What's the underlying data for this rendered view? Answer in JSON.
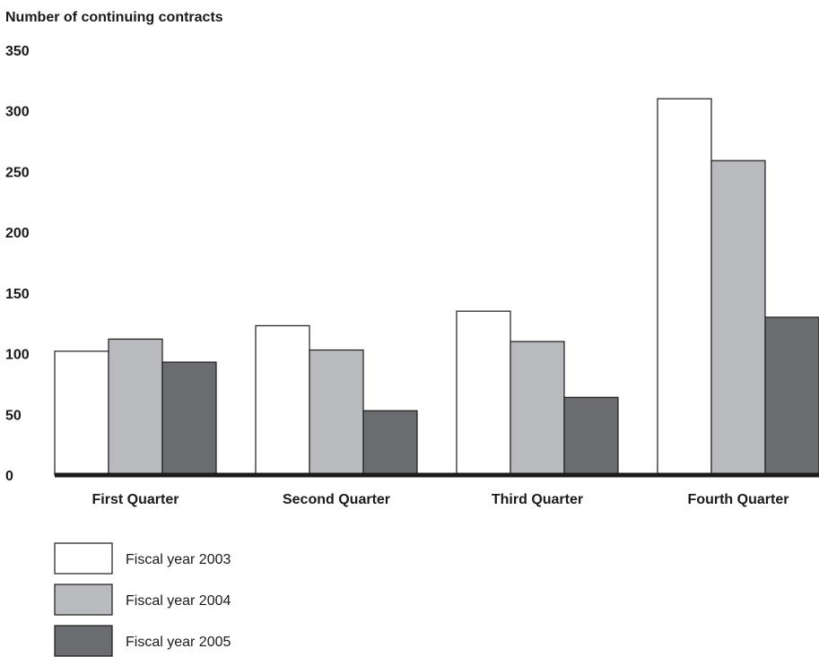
{
  "chart_data": {
    "type": "bar",
    "title": "Number of continuing contracts",
    "xlabel": "",
    "ylabel": "",
    "ylim": [
      0,
      350
    ],
    "yticks": [
      0,
      50,
      100,
      150,
      200,
      250,
      300,
      350
    ],
    "grid": false,
    "legend_position": "bottom-left",
    "categories": [
      "First Quarter",
      "Second Quarter",
      "Third Quarter",
      "Fourth Quarter"
    ],
    "series": [
      {
        "name": "Fiscal year 2003",
        "color": "#ffffff",
        "values": [
          102,
          123,
          135,
          310
        ]
      },
      {
        "name": "Fiscal year 2004",
        "color": "#b9babd",
        "values": [
          112,
          103,
          110,
          259
        ]
      },
      {
        "name": "Fiscal year 2005",
        "color": "#6b6c70",
        "values": [
          93,
          53,
          64,
          130
        ]
      }
    ]
  }
}
